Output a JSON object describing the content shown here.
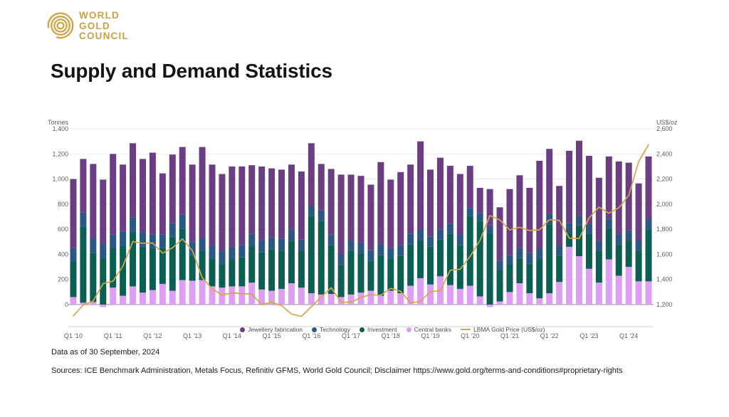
{
  "logo": {
    "lines": [
      "WORLD",
      "GOLD",
      "COUNCIL"
    ],
    "color": "#C9A144",
    "icon": "concentric-rings-icon"
  },
  "title": "Supply and Demand Statistics",
  "footer": {
    "data_as_of": "Data as of 30 September, 2024",
    "sources": "Sources: ICE Benchmark Administration, Metals Focus, Refinitiv GFMS, World Gold Council; Disclaimer https://www.gold.org/terms-and-conditions#proprietary-rights"
  },
  "chart_data": {
    "type": "bar",
    "subtype": "stacked-bars-with-line-overlay",
    "grid": true,
    "legend_position": "bottom-center",
    "left_axis": {
      "label": "Tonnes",
      "min": 0,
      "max": 1400,
      "tick_step": 200,
      "ticks": [
        "0",
        "200",
        "400",
        "600",
        "800",
        "1,000",
        "1,200",
        "1,400"
      ]
    },
    "right_axis": {
      "label": "US$/oz",
      "min": 1200,
      "max": 2600,
      "tick_step": 200,
      "ticks": [
        "1,200",
        "1,400",
        "1,600",
        "1,800",
        "2,000",
        "2,200",
        "2,400",
        "2,600"
      ]
    },
    "x_axis": {
      "tick_every": 4
    },
    "categories": [
      "Q1 '10",
      "Q2 '10",
      "Q3 '10",
      "Q4 '10",
      "Q1 '11",
      "Q2 '11",
      "Q3 '11",
      "Q4 '11",
      "Q1 '12",
      "Q2 '12",
      "Q3 '12",
      "Q4 '12",
      "Q1 '13",
      "Q2 '13",
      "Q3 '13",
      "Q4 '13",
      "Q1 '14",
      "Q2 '14",
      "Q3 '14",
      "Q4 '14",
      "Q1 '15",
      "Q2 '15",
      "Q3 '15",
      "Q4 '15",
      "Q1 '16",
      "Q2 '16",
      "Q3 '16",
      "Q4 '16",
      "Q1 '17",
      "Q2 '17",
      "Q3 '17",
      "Q4 '17",
      "Q1 '18",
      "Q2 '18",
      "Q3 '18",
      "Q4 '18",
      "Q1 '19",
      "Q2 '19",
      "Q3 '19",
      "Q4 '19",
      "Q1 '20",
      "Q2 '20",
      "Q3 '20",
      "Q4 '20",
      "Q1 '21",
      "Q2 '21",
      "Q3 '21",
      "Q4 '21",
      "Q1 '22",
      "Q2 '22",
      "Q3 '22",
      "Q4 '22",
      "Q1 '23",
      "Q2 '23",
      "Q3 '23",
      "Q4 '23",
      "Q1 '24",
      "Q2 '24",
      "Q3 '24"
    ],
    "stack_order": [
      "Central banks",
      "Investment",
      "Technology",
      "Jewellery fabrication"
    ],
    "series": [
      {
        "name": "Jewellery fabrication",
        "type": "bar",
        "color": "#6B3E84",
        "values": [
          550,
          425,
          590,
          510,
          640,
          530,
          590,
          585,
          650,
          485,
          545,
          540,
          615,
          725,
          645,
          615,
          640,
          625,
          545,
          585,
          550,
          550,
          515,
          540,
          500,
          370,
          520,
          635,
          525,
          535,
          520,
          650,
          545,
          580,
          550,
          705,
          535,
          570,
          460,
          485,
          335,
          200,
          290,
          425,
          525,
          580,
          520,
          700,
          520,
          475,
          575,
          600,
          545,
          505,
          495,
          580,
          540,
          455,
          500
        ]
      },
      {
        "name": "Technology",
        "type": "bar",
        "color": "#2A5882",
        "values": [
          110,
          115,
          120,
          120,
          115,
          120,
          120,
          115,
          110,
          110,
          110,
          110,
          105,
          105,
          105,
          105,
          100,
          100,
          100,
          100,
          95,
          95,
          95,
          95,
          80,
          85,
          85,
          85,
          80,
          85,
          85,
          90,
          85,
          85,
          85,
          85,
          80,
          80,
          80,
          80,
          65,
          65,
          60,
          75,
          75,
          80,
          85,
          85,
          80,
          80,
          80,
          75,
          75,
          75,
          75,
          80,
          80,
          80,
          85
        ]
      },
      {
        "name": "Investment",
        "type": "bar",
        "color": "#0A5E52",
        "values": [
          280,
          605,
          390,
          365,
          310,
          395,
          430,
          365,
          335,
          285,
          430,
          410,
          205,
          230,
          220,
          185,
          215,
          230,
          290,
          295,
          330,
          305,
          335,
          290,
          615,
          585,
          390,
          255,
          350,
          310,
          240,
          325,
          255,
          300,
          330,
          300,
          300,
          295,
          410,
          350,
          555,
          600,
          570,
          250,
          220,
          200,
          235,
          310,
          550,
          210,
          110,
          245,
          280,
          255,
          250,
          250,
          210,
          245,
          410
        ]
      },
      {
        "name": "Central banks",
        "type": "bar",
        "color": "#DD9EF3",
        "values": [
          60,
          15,
          20,
          -20,
          135,
          70,
          145,
          95,
          115,
          165,
          110,
          195,
          190,
          195,
          145,
          135,
          145,
          145,
          175,
          120,
          110,
          125,
          170,
          135,
          90,
          80,
          85,
          60,
          80,
          95,
          110,
          70,
          110,
          90,
          150,
          210,
          160,
          225,
          155,
          125,
          150,
          65,
          -20,
          25,
          100,
          170,
          90,
          50,
          90,
          180,
          460,
          385,
          285,
          175,
          360,
          230,
          300,
          185,
          185
        ]
      },
      {
        "name": "LBMA Gold Price (US$/oz)",
        "type": "line",
        "axis": "right",
        "color": "#D4A647",
        "values": [
          1110,
          1196,
          1227,
          1367,
          1386,
          1506,
          1702,
          1688,
          1691,
          1609,
          1652,
          1722,
          1631,
          1414,
          1326,
          1276,
          1293,
          1288,
          1282,
          1201,
          1218,
          1192,
          1124,
          1106,
          1183,
          1260,
          1334,
          1220,
          1219,
          1257,
          1278,
          1275,
          1329,
          1306,
          1213,
          1226,
          1304,
          1309,
          1474,
          1481,
          1583,
          1711,
          1909,
          1874,
          1794,
          1816,
          1790,
          1795,
          1877,
          1871,
          1729,
          1726,
          1890,
          1976,
          1928,
          1971,
          2070,
          2338,
          2474
        ]
      }
    ]
  }
}
